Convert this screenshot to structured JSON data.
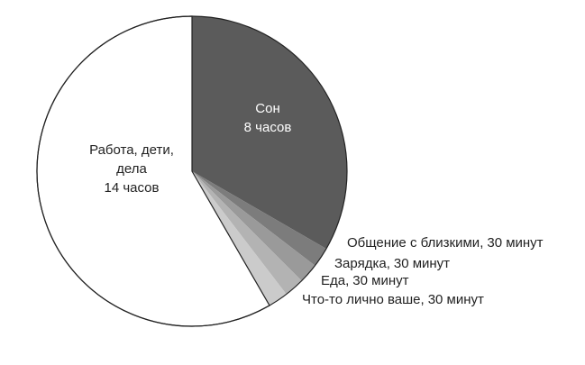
{
  "chart_data": {
    "type": "pie",
    "categories": [
      "Сон",
      "Общение с близкими",
      "Зарядка",
      "Еда",
      "Что-то лично ваше",
      "Работа, дети, дела"
    ],
    "values": [
      480,
      30,
      30,
      30,
      30,
      840
    ],
    "value_labels": [
      "8 часов",
      "30 минут",
      "30 минут",
      "30 минут",
      "30 минут",
      "14 часов"
    ],
    "colors": [
      "#5b5b5b",
      "#7c7c7c",
      "#9a9a9a",
      "#b3b3b3",
      "#cbcbcb",
      "#ffffff"
    ]
  }
}
